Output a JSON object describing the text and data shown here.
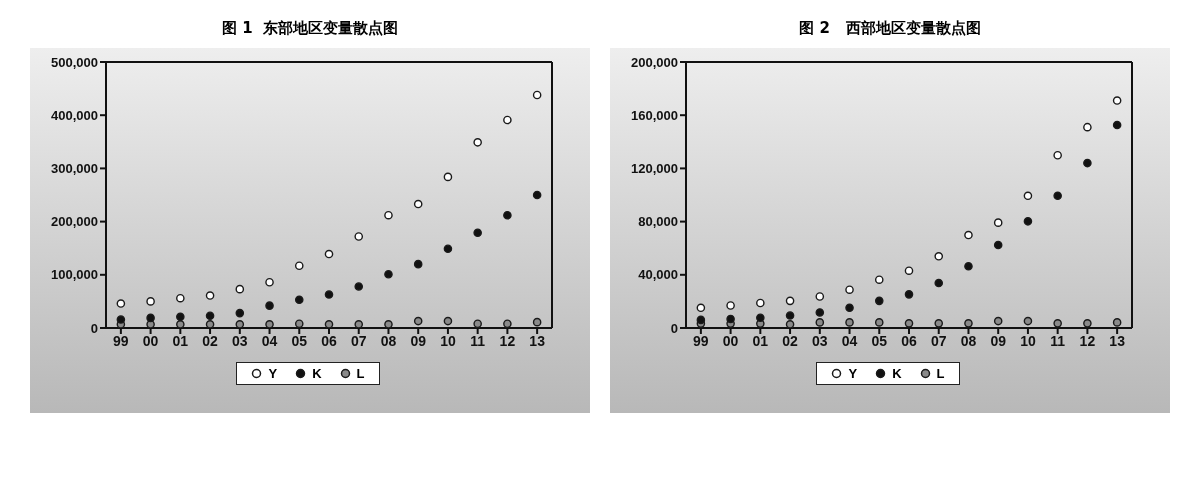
{
  "chart_data": [
    {
      "type": "scatter",
      "title": "图 1  东部地区变量散点图",
      "categories": [
        "99",
        "00",
        "01",
        "02",
        "03",
        "04",
        "05",
        "06",
        "07",
        "08",
        "09",
        "10",
        "11",
        "12",
        "13"
      ],
      "series": [
        {
          "name": "Y",
          "color": "#ffffff",
          "values": [
            46000,
            50000,
            56000,
            61000,
            73000,
            86000,
            117000,
            139000,
            172000,
            212000,
            233000,
            284000,
            349000,
            391000,
            438000
          ]
        },
        {
          "name": "K",
          "color": "#111111",
          "values": [
            16000,
            19000,
            21000,
            23000,
            28000,
            42000,
            53000,
            63000,
            78000,
            101000,
            120000,
            149000,
            179000,
            212000,
            250000
          ]
        },
        {
          "name": "L",
          "color": "#8a8a8a",
          "values": [
            7000,
            7000,
            7000,
            7000,
            7000,
            7000,
            8000,
            7000,
            7000,
            7000,
            13000,
            13000,
            8000,
            8000,
            11000
          ]
        }
      ],
      "ylim": [
        0,
        500000
      ],
      "yticks": [
        {
          "value": 0,
          "label": "0"
        },
        {
          "value": 100000,
          "label": "100,000"
        },
        {
          "value": 200000,
          "label": "200,000"
        },
        {
          "value": 300000,
          "label": "300,000"
        },
        {
          "value": 400000,
          "label": "400,000"
        },
        {
          "value": 500000,
          "label": "500,000"
        }
      ],
      "grid": false,
      "legend": "bottom",
      "marker": "circle"
    },
    {
      "type": "scatter",
      "title": "图 2   西部地区变量散点图",
      "categories": [
        "99",
        "00",
        "01",
        "02",
        "03",
        "04",
        "05",
        "06",
        "07",
        "08",
        "09",
        "10",
        "11",
        "12",
        "13"
      ],
      "series": [
        {
          "name": "Y",
          "color": "#ffffff",
          "values": [
            15200,
            16900,
            18800,
            20400,
            23700,
            28800,
            36300,
            43100,
            53900,
            69900,
            79200,
            99400,
            129900,
            151000,
            171000
          ]
        },
        {
          "name": "K",
          "color": "#111111",
          "values": [
            6100,
            6800,
            7700,
            9400,
            11700,
            15200,
            20400,
            25300,
            33800,
            46400,
            62400,
            80200,
            99400,
            124000,
            152600
          ]
        },
        {
          "name": "L",
          "color": "#8a8a8a",
          "values": [
            3300,
            3300,
            3300,
            2800,
            4200,
            4200,
            4200,
            3500,
            3500,
            3500,
            5200,
            5200,
            3500,
            3500,
            4200
          ]
        }
      ],
      "ylim": [
        0,
        200000
      ],
      "yticks": [
        {
          "value": 0,
          "label": "0"
        },
        {
          "value": 40000,
          "label": "40,000"
        },
        {
          "value": 80000,
          "label": "80,000"
        },
        {
          "value": 120000,
          "label": "120,000"
        },
        {
          "value": 160000,
          "label": "160,000"
        },
        {
          "value": 200000,
          "label": "200,000"
        }
      ],
      "grid": false,
      "legend": "bottom",
      "marker": "circle"
    }
  ]
}
